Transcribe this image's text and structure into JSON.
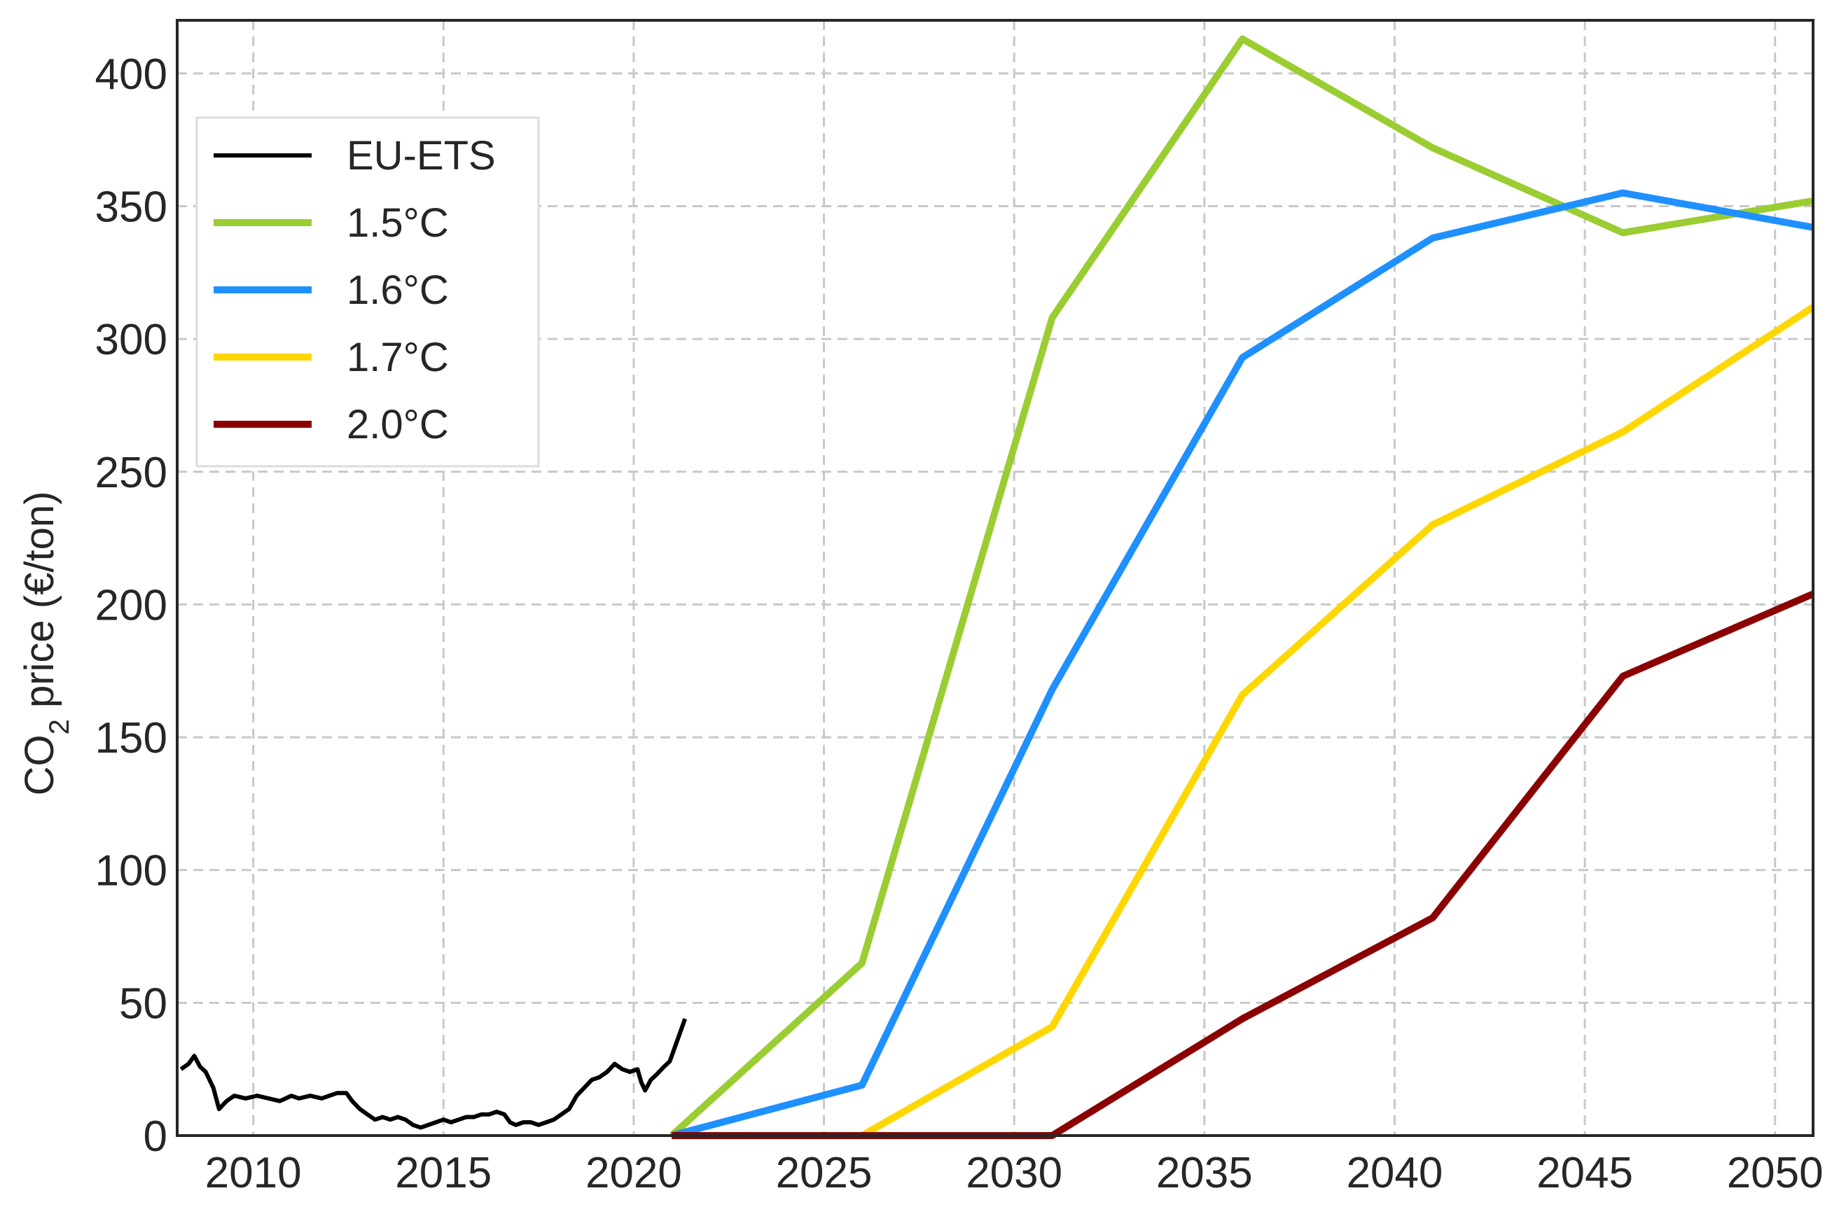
{
  "chart_data": {
    "type": "line",
    "title": "",
    "xlabel": "",
    "ylabel": "CO",
    "ylabel_subscript": "2",
    "ylabel_suffix": " price (€/ton)",
    "xlim": [
      2008.0,
      2051.0
    ],
    "ylim": [
      0,
      420
    ],
    "xticks": [
      2010,
      2015,
      2020,
      2025,
      2030,
      2035,
      2040,
      2045,
      2050
    ],
    "yticks": [
      0,
      50,
      100,
      150,
      200,
      250,
      300,
      350,
      400
    ],
    "grid": true,
    "legend_position": "upper-left",
    "series": [
      {
        "name": "EU-ETS",
        "color": "#000000",
        "points": [
          [
            2008.1,
            25
          ],
          [
            2008.3,
            27
          ],
          [
            2008.45,
            30
          ],
          [
            2008.6,
            26
          ],
          [
            2008.75,
            24
          ],
          [
            2008.95,
            18
          ],
          [
            2009.1,
            10
          ],
          [
            2009.3,
            13
          ],
          [
            2009.5,
            15
          ],
          [
            2009.8,
            14
          ],
          [
            2010.1,
            15
          ],
          [
            2010.4,
            14
          ],
          [
            2010.7,
            13
          ],
          [
            2011.0,
            15
          ],
          [
            2011.2,
            14
          ],
          [
            2011.5,
            15
          ],
          [
            2011.8,
            14
          ],
          [
            2012.0,
            15
          ],
          [
            2012.2,
            16
          ],
          [
            2012.45,
            16
          ],
          [
            2012.6,
            13
          ],
          [
            2012.8,
            10
          ],
          [
            2013.0,
            8
          ],
          [
            2013.2,
            6
          ],
          [
            2013.4,
            7
          ],
          [
            2013.6,
            6
          ],
          [
            2013.8,
            7
          ],
          [
            2014.0,
            6
          ],
          [
            2014.2,
            4
          ],
          [
            2014.4,
            3
          ],
          [
            2014.6,
            4
          ],
          [
            2014.8,
            5
          ],
          [
            2015.0,
            6
          ],
          [
            2015.2,
            5
          ],
          [
            2015.4,
            6
          ],
          [
            2015.6,
            7
          ],
          [
            2015.8,
            7
          ],
          [
            2016.0,
            8
          ],
          [
            2016.2,
            8
          ],
          [
            2016.4,
            9
          ],
          [
            2016.6,
            8
          ],
          [
            2016.75,
            5
          ],
          [
            2016.9,
            4
          ],
          [
            2017.1,
            5
          ],
          [
            2017.3,
            5
          ],
          [
            2017.5,
            4
          ],
          [
            2017.7,
            5
          ],
          [
            2017.9,
            6
          ],
          [
            2018.1,
            8
          ],
          [
            2018.3,
            10
          ],
          [
            2018.5,
            15
          ],
          [
            2018.7,
            18
          ],
          [
            2018.9,
            21
          ],
          [
            2019.1,
            22
          ],
          [
            2019.3,
            24
          ],
          [
            2019.5,
            27
          ],
          [
            2019.7,
            25
          ],
          [
            2019.9,
            24
          ],
          [
            2020.1,
            25
          ],
          [
            2020.2,
            20
          ],
          [
            2020.3,
            17
          ],
          [
            2020.45,
            21
          ],
          [
            2020.6,
            23
          ],
          [
            2020.8,
            26
          ],
          [
            2020.95,
            28
          ],
          [
            2021.05,
            32
          ],
          [
            2021.2,
            38
          ],
          [
            2021.35,
            44
          ]
        ]
      },
      {
        "name": "1.5°C",
        "color": "#9ACD32",
        "points": [
          [
            2021,
            0
          ],
          [
            2026,
            65
          ],
          [
            2031,
            308
          ],
          [
            2036,
            413
          ],
          [
            2041,
            372
          ],
          [
            2046,
            340
          ],
          [
            2051,
            352
          ]
        ]
      },
      {
        "name": "1.6°C",
        "color": "#1E90FF",
        "points": [
          [
            2021,
            0
          ],
          [
            2026,
            19
          ],
          [
            2031,
            168
          ],
          [
            2036,
            293
          ],
          [
            2041,
            338
          ],
          [
            2046,
            355
          ],
          [
            2051,
            342
          ]
        ]
      },
      {
        "name": "1.7°C",
        "color": "#FFD700",
        "points": [
          [
            2021,
            0
          ],
          [
            2026,
            0
          ],
          [
            2031,
            41
          ],
          [
            2036,
            166
          ],
          [
            2041,
            230
          ],
          [
            2046,
            265
          ],
          [
            2051,
            312
          ]
        ]
      },
      {
        "name": "2.0°C",
        "color": "#8B0000",
        "points": [
          [
            2021,
            0
          ],
          [
            2026,
            0
          ],
          [
            2031,
            0
          ],
          [
            2036,
            44
          ],
          [
            2041,
            82
          ],
          [
            2046,
            173
          ],
          [
            2051,
            204
          ]
        ]
      }
    ]
  }
}
